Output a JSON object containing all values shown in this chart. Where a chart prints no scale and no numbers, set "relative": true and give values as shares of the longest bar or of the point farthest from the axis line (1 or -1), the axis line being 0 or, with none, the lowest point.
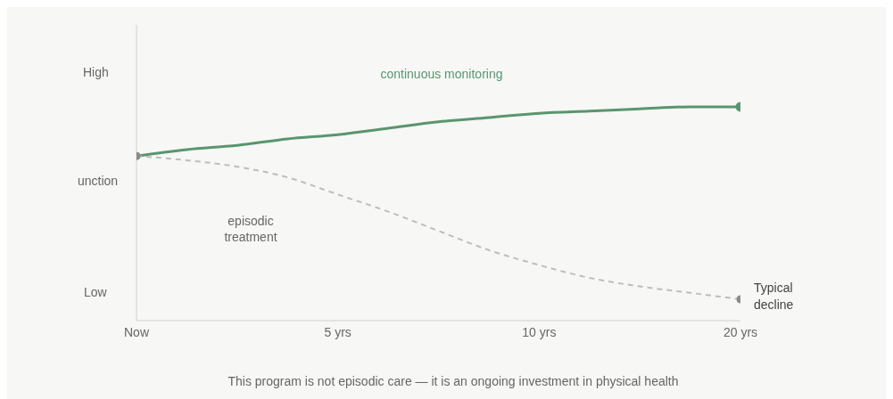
{
  "chart_data": {
    "type": "line",
    "relative": true,
    "line_style": "solid",
    "categories": [
      "Now",
      null,
      null,
      null,
      "5 yrs",
      null,
      null,
      null,
      "10 yrs",
      null,
      null,
      null,
      "20 yrs"
    ],
    "series": [
      {
        "color": "#58966e",
        "values": [
          0.77,
          0.8,
          0.82,
          0.85,
          0.87,
          0.9,
          0.93,
          0.95,
          0.97,
          0.98,
          0.99,
          1.0,
          1.0
        ]
      },
      {
        "name": "Typical decline",
        "color": "#bdbdbd",
        "line_style": "dashed",
        "values": [
          0.77,
          0.75,
          0.72,
          0.67,
          0.59,
          0.51,
          0.42,
          0.33,
          0.26,
          0.2,
          0.16,
          0.13,
          0.1
        ]
      }
    ],
    "annotations": [
      "High",
      "unction",
      "Low",
      "continuous monitoring",
      "episodic treatment",
      "This program is not episodic care — it is an ongoing investment in physical health"
    ]
  }
}
